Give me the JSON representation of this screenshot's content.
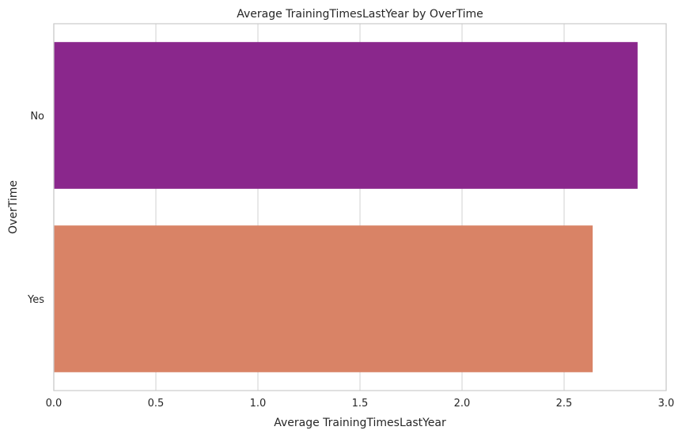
{
  "chart_data": {
    "type": "bar",
    "orientation": "horizontal",
    "title": "Average TrainingTimesLastYear by OverTime",
    "xlabel": "Average TrainingTimesLastYear",
    "ylabel": "OverTime",
    "categories": [
      "No",
      "Yes"
    ],
    "values": [
      2.86,
      2.64
    ],
    "colors": [
      "#8a278c",
      "#d98366"
    ],
    "xlim": [
      0,
      3.0
    ],
    "xticks": [
      0.0,
      0.5,
      1.0,
      1.5,
      2.0,
      2.5,
      3.0
    ],
    "xtick_labels": [
      "0.0",
      "0.5",
      "1.0",
      "1.5",
      "2.0",
      "2.5",
      "3.0"
    ],
    "grid": true,
    "grid_axis": "x",
    "legend": "none"
  }
}
